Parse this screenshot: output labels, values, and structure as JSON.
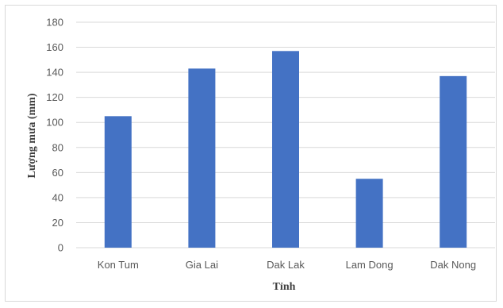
{
  "chart_data": {
    "type": "bar",
    "categories": [
      "Kon Tum",
      "Gia Lai",
      "Dak Lak",
      "Lam Dong",
      "Dak Nong"
    ],
    "values": [
      105,
      143,
      157,
      55,
      137
    ],
    "xlabel": "Tỉnh",
    "ylabel": "Lượng mưa (mm)",
    "ylim": [
      0,
      180
    ],
    "yticks": [
      0,
      20,
      40,
      60,
      80,
      100,
      120,
      140,
      160,
      180
    ],
    "grid": true,
    "legend": "none",
    "bar_color": "#4472c4",
    "grid_color": "#d9d9d9"
  }
}
